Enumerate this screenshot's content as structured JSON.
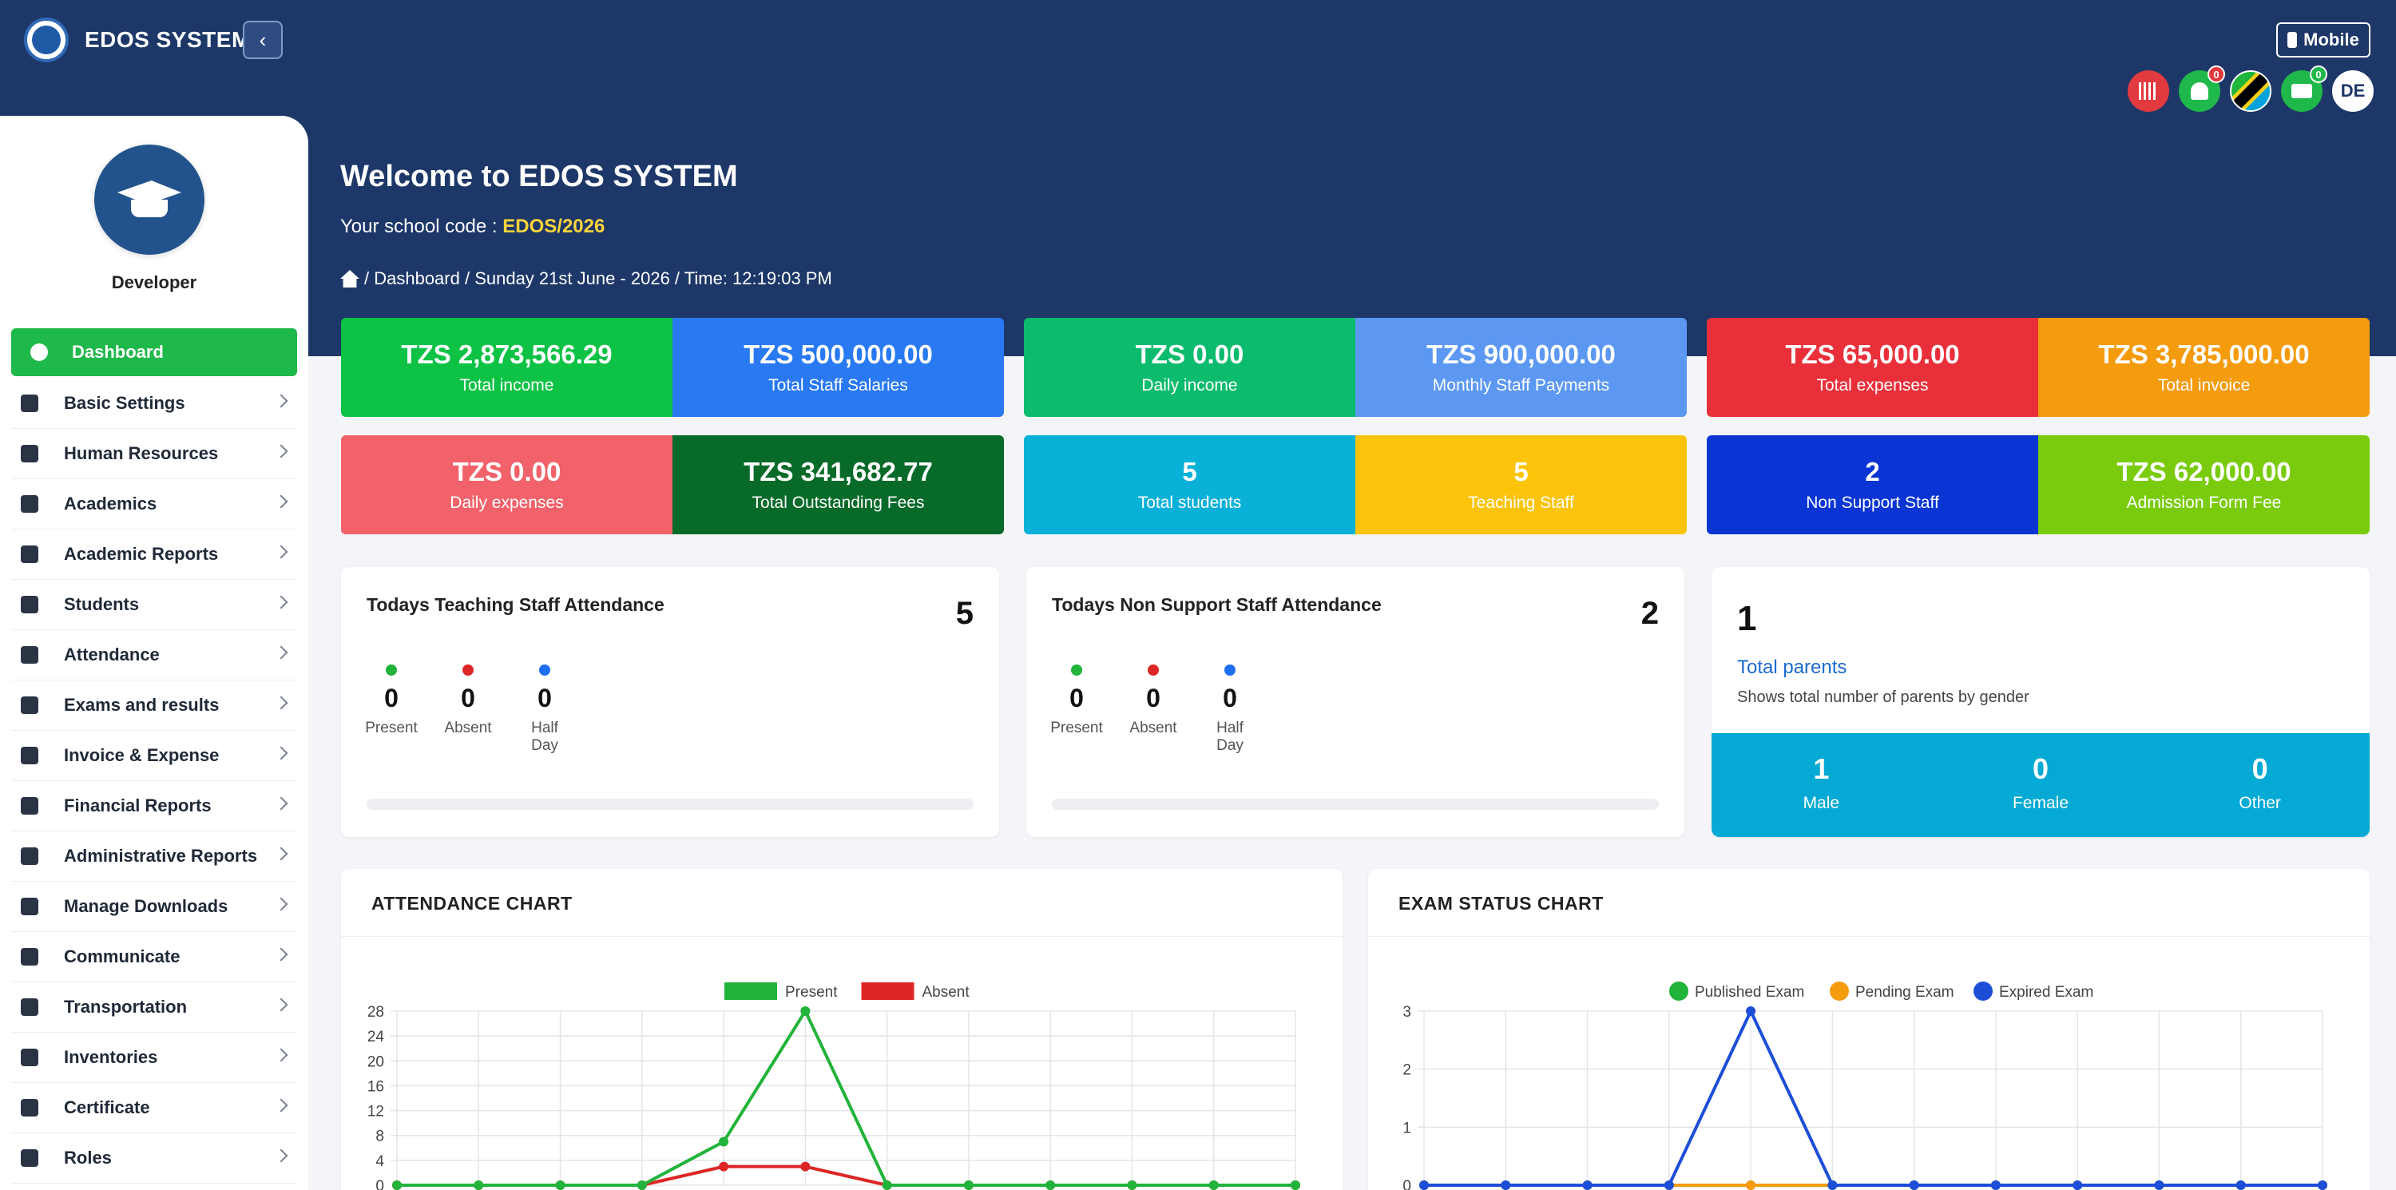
{
  "app": {
    "title": "EDOS SYSTEM",
    "mobile_label": "Mobile"
  },
  "topbar": {
    "notification_count": "0",
    "message_count": "0",
    "user_initials": "DE"
  },
  "sidebar": {
    "profile_name": "Developer",
    "items": [
      {
        "label": "Dashboard",
        "active": true
      },
      {
        "label": "Basic Settings"
      },
      {
        "label": "Human Resources"
      },
      {
        "label": "Academics"
      },
      {
        "label": "Academic Reports"
      },
      {
        "label": "Students"
      },
      {
        "label": "Attendance"
      },
      {
        "label": "Exams and results"
      },
      {
        "label": "Invoice & Expense"
      },
      {
        "label": "Financial Reports"
      },
      {
        "label": "Administrative Reports"
      },
      {
        "label": "Manage Downloads"
      },
      {
        "label": "Communicate"
      },
      {
        "label": "Transportation"
      },
      {
        "label": "Inventories"
      },
      {
        "label": "Certificate"
      },
      {
        "label": "Roles"
      }
    ]
  },
  "welcome": {
    "heading": "Welcome to EDOS SYSTEM",
    "code_label": "Your school code :",
    "code_value": "EDOS/2026",
    "breadcrumb": "/ Dashboard / Sunday 21st June - 2026 / Time: 12:19:03 PM"
  },
  "tiles": [
    {
      "value": "TZS 2,873,566.29",
      "label": "Total income",
      "color": "#0dc245"
    },
    {
      "value": "TZS 500,000.00",
      "label": "Total Staff Salaries",
      "color": "#2979f2"
    },
    {
      "value": "TZS 0.00",
      "label": "Daily income",
      "color": "#0cbb6d"
    },
    {
      "value": "TZS 900,000.00",
      "label": "Monthly Staff Payments",
      "color": "#5c98f2"
    },
    {
      "value": "TZS 65,000.00",
      "label": "Total expenses",
      "color": "#e9303a"
    },
    {
      "value": "TZS 3,785,000.00",
      "label": "Total invoice",
      "color": "#f59b0e"
    },
    {
      "value": "TZS 0.00",
      "label": "Daily expenses",
      "color": "#f2626a"
    },
    {
      "value": "TZS 341,682.77",
      "label": "Total Outstanding Fees",
      "color": "#076a28"
    },
    {
      "value": "5",
      "label": "Total students",
      "color": "#09b0d8"
    },
    {
      "value": "5",
      "label": "Teaching Staff",
      "color": "#fbc40a"
    },
    {
      "value": "2",
      "label": "Non Support Staff",
      "color": "#0a35d4"
    },
    {
      "value": "TZS 62,000.00",
      "label": "Admission Form Fee",
      "color": "#7acb0e"
    }
  ],
  "teaching_attendance": {
    "title": "Todays Teaching Staff Attendance",
    "total": "5",
    "present": "0",
    "absent": "0",
    "half_day": "0",
    "present_label": "Present",
    "absent_label": "Absent",
    "half_day_label": "Half Day"
  },
  "nonsupport_attendance": {
    "title": "Todays Non Support Staff Attendance",
    "total": "2",
    "present": "0",
    "absent": "0",
    "half_day": "0",
    "present_label": "Present",
    "absent_label": "Absent",
    "half_day_label": "Half Day"
  },
  "parents": {
    "count": "1",
    "title": "Total parents",
    "description": "Shows total number of parents by gender",
    "male": "1",
    "female": "0",
    "other": "0",
    "male_label": "Male",
    "female_label": "Female",
    "other_label": "Other"
  },
  "attendance_chart_title": "ATTENDANCE CHART",
  "exam_chart_title": "EXAM STATUS CHART",
  "colors": {
    "header": "#1d3768",
    "accent": "#1fb84a",
    "present": "#22b33a",
    "absent": "#dc2626",
    "published": "#22b33a",
    "pending": "#f59b0e",
    "expired": "#1d4ed8"
  },
  "chart_data": [
    {
      "type": "line",
      "title": "ATTENDANCE CHART",
      "ylim": [
        0,
        28
      ],
      "yticks": [
        0,
        4,
        8,
        12,
        16,
        20,
        24,
        28
      ],
      "series": [
        {
          "name": "Present",
          "values": [
            0,
            0,
            0,
            0,
            7,
            28,
            0,
            0,
            0,
            0,
            0,
            0
          ]
        },
        {
          "name": "Absent",
          "values": [
            0,
            0,
            0,
            0,
            3,
            3,
            0,
            0,
            0,
            0,
            0,
            0
          ]
        }
      ]
    },
    {
      "type": "line",
      "title": "EXAM STATUS CHART",
      "ylim": [
        0,
        3
      ],
      "yticks": [
        0,
        1,
        2,
        3
      ],
      "series": [
        {
          "name": "Published Exam",
          "values": [
            0,
            0,
            0,
            0,
            0,
            0,
            0,
            0,
            0,
            0,
            0,
            0
          ]
        },
        {
          "name": "Pending Exam",
          "values": [
            0,
            0,
            0,
            0,
            0,
            0,
            0,
            0,
            0,
            0,
            0,
            0
          ]
        },
        {
          "name": "Expired Exam",
          "values": [
            0,
            0,
            0,
            0,
            3,
            0,
            0,
            0,
            0,
            0,
            0,
            0
          ]
        }
      ]
    }
  ]
}
